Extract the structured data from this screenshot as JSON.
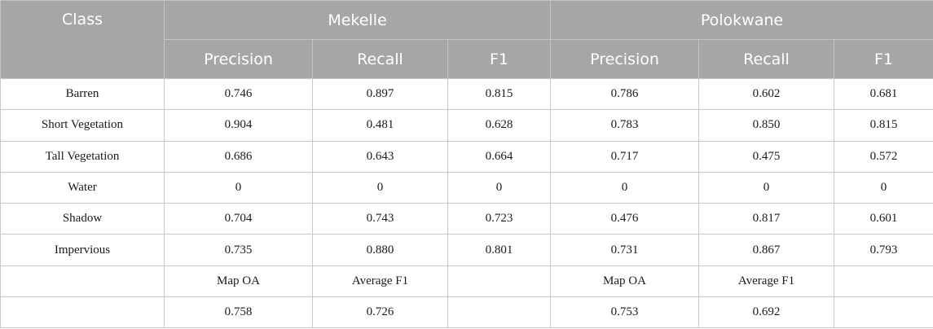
{
  "header": {
    "class_label": "Class",
    "groups": [
      "Mekelle",
      "Polokwane"
    ],
    "metrics": [
      "Precision",
      "Recall",
      "F1",
      "Precision",
      "Recall",
      "F1"
    ]
  },
  "rows": [
    {
      "class": "Barren",
      "cells": [
        "0.746",
        "0.897",
        "0.815",
        "0.786",
        "0.602",
        "0.681"
      ]
    },
    {
      "class": "Short Vegetation",
      "cells": [
        "0.904",
        "0.481",
        "0.628",
        "0.783",
        "0.850",
        "0.815"
      ]
    },
    {
      "class": "Tall Vegetation",
      "cells": [
        "0.686",
        "0.643",
        "0.664",
        "0.717",
        "0.475",
        "0.572"
      ]
    },
    {
      "class": "Water",
      "cells": [
        "0",
        "0",
        "0",
        "0",
        "0",
        "0"
      ]
    },
    {
      "class": "Shadow",
      "cells": [
        "0.704",
        "0.743",
        "0.723",
        "0.476",
        "0.817",
        "0.601"
      ]
    },
    {
      "class": "Impervious",
      "cells": [
        "0.735",
        "0.880",
        "0.801",
        "0.731",
        "0.867",
        "0.793"
      ]
    },
    {
      "class": "",
      "cells": [
        "Map OA",
        "Average F1",
        "",
        "Map OA",
        "Average F1",
        ""
      ]
    },
    {
      "class": "",
      "cells": [
        "0.758",
        "0.726",
        "",
        "0.753",
        "0.692",
        ""
      ]
    }
  ]
}
